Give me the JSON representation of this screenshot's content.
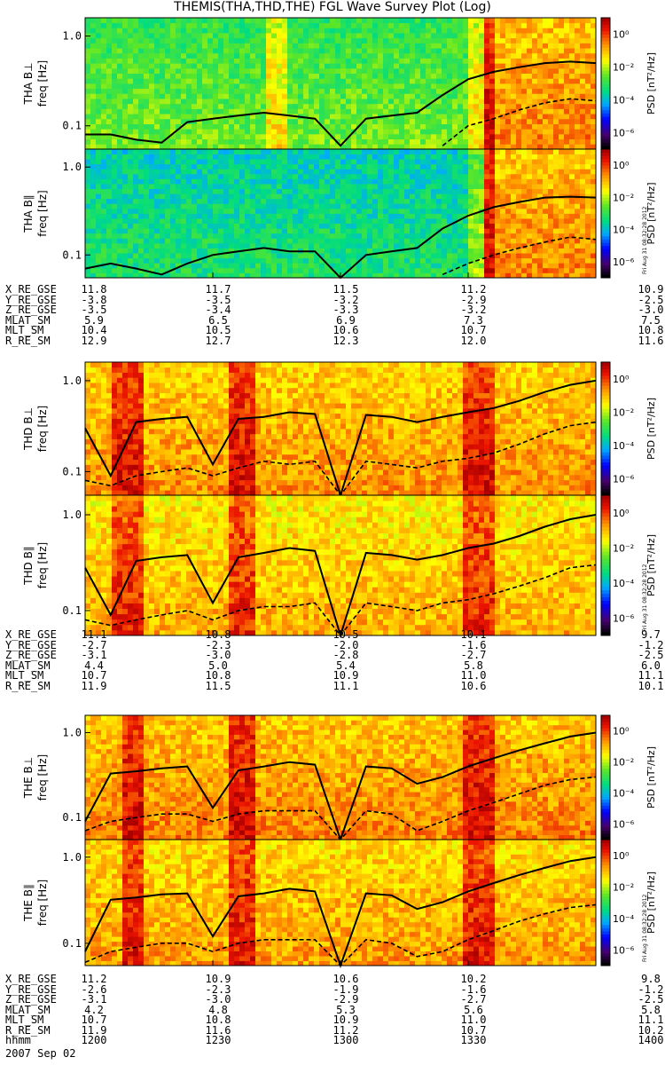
{
  "title": "THEMIS(THA,THD,THE) FGL Wave Survey Plot (Log)",
  "date": "2007 Sep 02",
  "colors": {
    "curve": "#000000",
    "background": "#ffffff"
  },
  "colorbar": {
    "label": "PSD [nT²/Hz]",
    "ticks": [
      "10⁰",
      "10⁻²",
      "10⁻⁴",
      "10⁻⁶"
    ],
    "exponents": [
      0,
      -2,
      -4,
      -6
    ],
    "range_exp": [
      -7,
      1
    ],
    "stamp": "Fri Aug 31 08:32:28 2012"
  },
  "chart_data": [
    {
      "type": "heatmap",
      "spacecraft": "THA",
      "ylabel": "THA B⊥",
      "yunit": "freq [Hz]",
      "yticks": [
        "1.0",
        "0.1"
      ],
      "ylim": [
        0.055,
        1.6
      ],
      "level": 0.35,
      "dark_bands": [
        [
          0.35,
          0.4
        ],
        [
          0.745,
          0.8
        ]
      ],
      "solid_line": [
        0.08,
        0.08,
        0.07,
        0.065,
        0.11,
        0.12,
        0.13,
        0.14,
        0.13,
        0.12,
        0.06,
        0.12,
        0.13,
        0.14,
        0.22,
        0.33,
        0.4,
        0.45,
        0.5,
        0.52,
        0.5
      ],
      "dashed_line": [
        0,
        0,
        0,
        0,
        0,
        0,
        0,
        0,
        0,
        0,
        0,
        0,
        0,
        0,
        0.06,
        0.1,
        0.12,
        0.15,
        0.18,
        0.2,
        0.19
      ]
    },
    {
      "type": "heatmap",
      "spacecraft": "THA",
      "ylabel": "THA B∥",
      "yunit": "freq [Hz]",
      "yticks": [
        "1.0",
        "0.1"
      ],
      "ylim": [
        0.055,
        1.6
      ],
      "level": 0.2,
      "dark_bands": [
        [
          0.745,
          0.8
        ]
      ],
      "solid_line": [
        0.07,
        0.08,
        0.07,
        0.06,
        0.08,
        0.1,
        0.11,
        0.12,
        0.11,
        0.11,
        0.05,
        0.1,
        0.11,
        0.12,
        0.2,
        0.28,
        0.35,
        0.4,
        0.45,
        0.46,
        0.45
      ],
      "dashed_line": [
        0,
        0,
        0,
        0,
        0,
        0,
        0,
        0,
        0,
        0,
        0,
        0,
        0,
        0,
        0.06,
        0.08,
        0.1,
        0.12,
        0.14,
        0.16,
        0.15
      ]
    },
    {
      "type": "heatmap",
      "spacecraft": "THD",
      "ylabel": "THD B⊥",
      "yunit": "freq [Hz]",
      "yticks": [
        "1.0",
        "0.1"
      ],
      "ylim": [
        0.055,
        1.6
      ],
      "level": 0.7,
      "dark_bands": [
        [
          0.05,
          0.11
        ],
        [
          0.28,
          0.33
        ],
        [
          0.74,
          0.8
        ]
      ],
      "solid_line": [
        0.3,
        0.09,
        0.35,
        0.38,
        0.4,
        0.12,
        0.38,
        0.4,
        0.45,
        0.43,
        0.05,
        0.42,
        0.4,
        0.35,
        0.4,
        0.45,
        0.5,
        0.6,
        0.75,
        0.9,
        1.0
      ],
      "dashed_line": [
        0.08,
        0.07,
        0.09,
        0.1,
        0.11,
        0.09,
        0.11,
        0.13,
        0.12,
        0.13,
        0.05,
        0.13,
        0.12,
        0.11,
        0.13,
        0.14,
        0.16,
        0.2,
        0.26,
        0.32,
        0.35
      ]
    },
    {
      "type": "heatmap",
      "spacecraft": "THD",
      "ylabel": "THD B∥",
      "yunit": "freq [Hz]",
      "yticks": [
        "1.0",
        "0.1"
      ],
      "ylim": [
        0.055,
        1.6
      ],
      "level": 0.65,
      "dark_bands": [
        [
          0.05,
          0.11
        ],
        [
          0.28,
          0.33
        ],
        [
          0.74,
          0.8
        ]
      ],
      "solid_line": [
        0.28,
        0.09,
        0.33,
        0.36,
        0.38,
        0.12,
        0.36,
        0.4,
        0.45,
        0.42,
        0.05,
        0.4,
        0.38,
        0.34,
        0.38,
        0.45,
        0.5,
        0.6,
        0.75,
        0.9,
        1.0
      ],
      "dashed_line": [
        0.08,
        0.07,
        0.08,
        0.09,
        0.1,
        0.08,
        0.1,
        0.11,
        0.11,
        0.12,
        0.05,
        0.12,
        0.11,
        0.1,
        0.12,
        0.13,
        0.15,
        0.18,
        0.22,
        0.28,
        0.3
      ]
    },
    {
      "type": "heatmap",
      "spacecraft": "THE",
      "ylabel": "THE B⊥",
      "yunit": "freq [Hz]",
      "yticks": [
        "1.0",
        "0.1"
      ],
      "ylim": [
        0.055,
        1.6
      ],
      "level": 0.72,
      "dark_bands": [
        [
          0.07,
          0.11
        ],
        [
          0.28,
          0.33
        ],
        [
          0.74,
          0.8
        ]
      ],
      "solid_line": [
        0.09,
        0.33,
        0.35,
        0.38,
        0.4,
        0.13,
        0.36,
        0.4,
        0.45,
        0.42,
        0.05,
        0.4,
        0.38,
        0.25,
        0.3,
        0.4,
        0.5,
        0.62,
        0.75,
        0.9,
        1.0
      ],
      "dashed_line": [
        0.07,
        0.09,
        0.1,
        0.11,
        0.11,
        0.09,
        0.11,
        0.12,
        0.12,
        0.12,
        0.05,
        0.12,
        0.11,
        0.07,
        0.09,
        0.12,
        0.15,
        0.19,
        0.24,
        0.28,
        0.3
      ]
    },
    {
      "type": "heatmap",
      "spacecraft": "THE",
      "ylabel": "THE B∥",
      "yunit": "freq [Hz]",
      "yticks": [
        "1.0",
        "0.1"
      ],
      "ylim": [
        0.055,
        1.6
      ],
      "level": 0.68,
      "dark_bands": [
        [
          0.07,
          0.11
        ],
        [
          0.28,
          0.33
        ],
        [
          0.74,
          0.8
        ]
      ],
      "solid_line": [
        0.08,
        0.32,
        0.34,
        0.37,
        0.38,
        0.12,
        0.35,
        0.38,
        0.43,
        0.4,
        0.05,
        0.38,
        0.36,
        0.25,
        0.3,
        0.4,
        0.5,
        0.62,
        0.75,
        0.9,
        1.0
      ],
      "dashed_line": [
        0.06,
        0.08,
        0.09,
        0.1,
        0.1,
        0.08,
        0.1,
        0.11,
        0.11,
        0.11,
        0.05,
        0.11,
        0.1,
        0.07,
        0.08,
        0.11,
        0.14,
        0.18,
        0.22,
        0.26,
        0.28
      ]
    }
  ],
  "ephemeris": [
    {
      "spacecraft": "THA",
      "rows": [
        {
          "label": "X_RE_GSE",
          "values": [
            "11.8",
            "11.7",
            "11.5",
            "11.2",
            "10.9"
          ]
        },
        {
          "label": "Y_RE_GSE",
          "values": [
            "-3.8",
            "-3.5",
            "-3.2",
            "-2.9",
            "-2.5"
          ]
        },
        {
          "label": "Z_RE_GSE",
          "values": [
            "-3.5",
            "-3.4",
            "-3.3",
            "-3.2",
            "-3.0"
          ]
        },
        {
          "label": "MLAT_SM",
          "values": [
            "5.9",
            "6.5",
            "6.9",
            "7.3",
            "7.5"
          ]
        },
        {
          "label": "MLT_SM",
          "values": [
            "10.4",
            "10.5",
            "10.6",
            "10.7",
            "10.8"
          ]
        },
        {
          "label": "R_RE_SM",
          "values": [
            "12.9",
            "12.7",
            "12.3",
            "12.0",
            "11.6"
          ]
        }
      ]
    },
    {
      "spacecraft": "THD",
      "rows": [
        {
          "label": "X_RE_GSE",
          "values": [
            "11.1",
            "10.8",
            "10.5",
            "10.1",
            "9.7"
          ]
        },
        {
          "label": "Y_RE_GSE",
          "values": [
            "-2.7",
            "-2.3",
            "-2.0",
            "-1.6",
            "-1.2"
          ]
        },
        {
          "label": "Z_RE_GSE",
          "values": [
            "-3.1",
            "-3.0",
            "-2.8",
            "-2.7",
            "-2.5"
          ]
        },
        {
          "label": "MLAT_SM",
          "values": [
            "4.4",
            "5.0",
            "5.4",
            "5.8",
            "6.0"
          ]
        },
        {
          "label": "MLT_SM",
          "values": [
            "10.7",
            "10.8",
            "10.9",
            "11.0",
            "11.1"
          ]
        },
        {
          "label": "R_RE_SM",
          "values": [
            "11.9",
            "11.5",
            "11.1",
            "10.6",
            "10.1"
          ]
        }
      ]
    },
    {
      "spacecraft": "THE",
      "rows": [
        {
          "label": "X_RE_GSE",
          "values": [
            "11.2",
            "10.9",
            "10.6",
            "10.2",
            "9.8"
          ]
        },
        {
          "label": "Y_RE_GSE",
          "values": [
            "-2.6",
            "-2.3",
            "-1.9",
            "-1.6",
            "-1.2"
          ]
        },
        {
          "label": "Z_RE_GSE",
          "values": [
            "-3.1",
            "-3.0",
            "-2.9",
            "-2.7",
            "-2.5"
          ]
        },
        {
          "label": "MLAT_SM",
          "values": [
            "4.2",
            "4.8",
            "5.3",
            "5.6",
            "5.8"
          ]
        },
        {
          "label": "MLT_SM",
          "values": [
            "10.7",
            "10.8",
            "10.9",
            "11.0",
            "11.1"
          ]
        },
        {
          "label": "R_RE_SM",
          "values": [
            "11.9",
            "11.6",
            "11.2",
            "10.7",
            "10.2"
          ]
        },
        {
          "label": "hhmm",
          "values": [
            "1200",
            "1230",
            "1300",
            "1330",
            "1400"
          ]
        }
      ]
    }
  ]
}
